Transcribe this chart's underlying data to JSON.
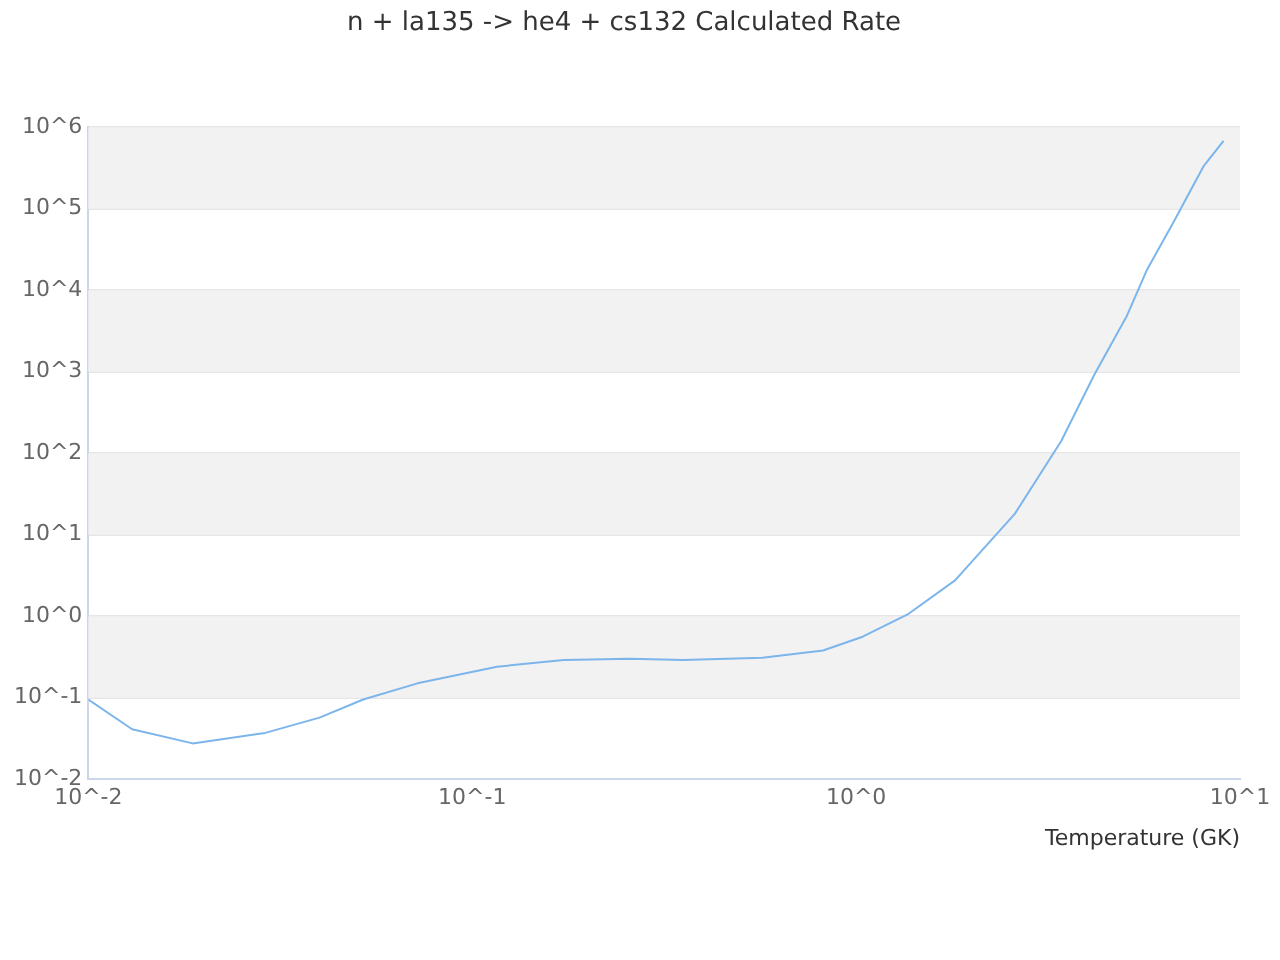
{
  "chart_data": {
    "type": "line",
    "title": "n + la135 -> he4 + cs132 Calculated Rate",
    "xlabel": "Temperature (GK)",
    "log": "xy",
    "grid": "y",
    "legend": false,
    "marker": "none",
    "line_style": "solid",
    "x": [
      0.01,
      0.013,
      0.0187,
      0.0289,
      0.04,
      0.052,
      0.072,
      0.116,
      0.173,
      0.258,
      0.354,
      0.57,
      0.82,
      1.04,
      1.37,
      1.81,
      2.59,
      3.42,
      4.17,
      5.08,
      5.73,
      6.71,
      8.03,
      9.06
    ],
    "series": [
      {
        "color": "#7cb5ec",
        "values": [
          0.095,
          0.041,
          0.0275,
          0.037,
          0.057,
          0.095,
          0.15,
          0.24,
          0.29,
          0.3,
          0.29,
          0.31,
          0.38,
          0.56,
          1.07,
          2.75,
          18,
          140,
          910,
          4900,
          18000,
          68000,
          330000,
          680000
        ]
      }
    ],
    "xlim": [
      0.01,
      10
    ],
    "xticks": [
      {
        "value": 0.01,
        "label": "10^-2"
      },
      {
        "value": 0.1,
        "label": "10^-1"
      },
      {
        "value": 1,
        "label": "10^0"
      },
      {
        "value": 10,
        "label": "10^1"
      }
    ],
    "ylim": [
      0.01,
      1000000
    ],
    "yticks": [
      {
        "value": 0.01,
        "label": "10^-2"
      },
      {
        "value": 0.1,
        "label": "10^-1"
      },
      {
        "value": 1,
        "label": "10^0"
      },
      {
        "value": 10,
        "label": "10^1"
      },
      {
        "value": 100,
        "label": "10^2"
      },
      {
        "value": 1000,
        "label": "10^3"
      },
      {
        "value": 10000,
        "label": "10^4"
      },
      {
        "value": 100000,
        "label": "10^5"
      },
      {
        "value": 1000000,
        "label": "10^6"
      }
    ],
    "bands": [
      {
        "axis": "y",
        "from": 0.1,
        "to": 1,
        "color": "#f2f2f2"
      },
      {
        "axis": "y",
        "from": 10,
        "to": 100,
        "color": "#f2f2f2"
      },
      {
        "axis": "y",
        "from": 1000,
        "to": 10000,
        "color": "#f2f2f2"
      },
      {
        "axis": "y",
        "from": 100000,
        "to": 1000000,
        "color": "#f2f2f2"
      }
    ]
  }
}
